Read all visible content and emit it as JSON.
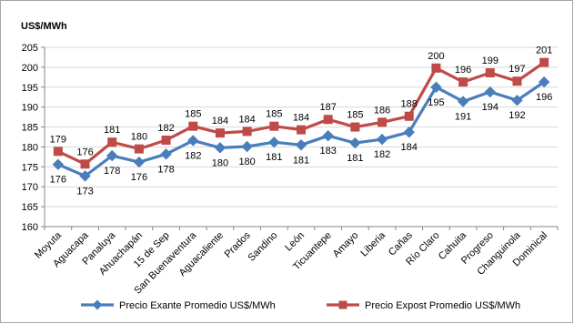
{
  "chart_data": {
    "type": "line",
    "ylabel": "US$/MWh",
    "ylim": [
      160,
      205
    ],
    "ytick_step": 5,
    "grid": "horizontal",
    "legend_position": "bottom",
    "categories": [
      "Moyuta",
      "Aguacapa",
      "Panaluya",
      "Ahuachapán",
      "15 de Sep",
      "San Buenaventura",
      "Aguacaliente",
      "Prados",
      "Sandino",
      "León",
      "Ticuantepe",
      "Amayo",
      "Liberia",
      "Cañas",
      "Río Claro",
      "Cahuita",
      "Progreso",
      "Changuinola",
      "Dominical"
    ],
    "series": [
      {
        "name": "Precio Exante Promedio US$/MWh",
        "color": "#4a7ebb",
        "marker": "diamond",
        "label_position": "below",
        "values": [
          175.6,
          172.7,
          177.8,
          176.2,
          178.2,
          181.6,
          179.8,
          180.1,
          181.2,
          180.5,
          182.8,
          181.0,
          181.9,
          183.7,
          195.0,
          191.4,
          193.8,
          191.7,
          196.3
        ],
        "labels": [
          "176",
          "173",
          "178",
          "176",
          "178",
          "182",
          "180",
          "180",
          "181",
          "181",
          "183",
          "181",
          "182",
          "184",
          "195",
          "191",
          "194",
          "192",
          "196"
        ]
      },
      {
        "name": "Precio Expost Promedio US$/MWh",
        "color": "#be4b48",
        "marker": "square",
        "label_position": "above",
        "values": [
          178.9,
          175.7,
          181.2,
          179.5,
          181.7,
          185.2,
          183.5,
          183.9,
          185.2,
          184.3,
          186.9,
          185.0,
          186.2,
          187.7,
          199.8,
          196.3,
          198.6,
          196.5,
          201.2
        ],
        "labels": [
          "179",
          "176",
          "181",
          "180",
          "182",
          "185",
          "184",
          "184",
          "185",
          "184",
          "187",
          "185",
          "186",
          "188",
          "200",
          "196",
          "199",
          "197",
          "201"
        ]
      }
    ]
  }
}
